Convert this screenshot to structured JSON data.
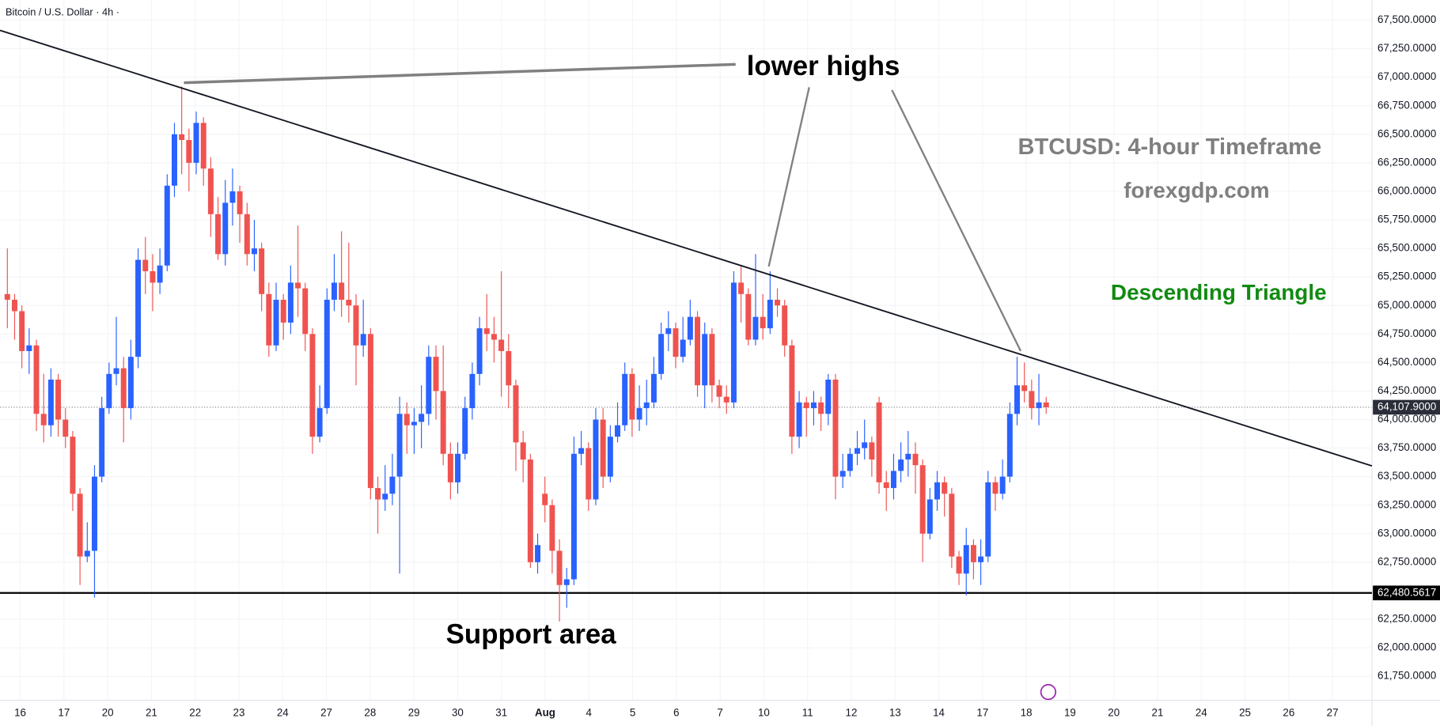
{
  "chart_data": {
    "type": "candlestick",
    "title": "Bitcoin / U.S. Dollar · 4h ·",
    "up_color": "#2962ff",
    "down_color": "#ef5350",
    "annotations": [
      "lower highs",
      "BTCUSD: 4-hour Timeframe",
      "forexgdp.com",
      "Descending Triangle",
      "Support area"
    ],
    "xticks": [
      "16",
      "17",
      "20",
      "21",
      "22",
      "23",
      "24",
      "27",
      "28",
      "29",
      "30",
      "31",
      "Aug",
      "4",
      "5",
      "6",
      "7",
      "10",
      "11",
      "12",
      "13",
      "14",
      "17",
      "18",
      "19",
      "20",
      "21",
      "24",
      "25",
      "26",
      "27"
    ],
    "ylim": [
      61540,
      67677
    ],
    "yticks": [
      {
        "value": 67500,
        "label": "67,500.0000"
      },
      {
        "value": 67250,
        "label": "67,250.0000"
      },
      {
        "value": 67000,
        "label": "67,000.0000"
      },
      {
        "value": 66750,
        "label": "66,750.0000"
      },
      {
        "value": 66500,
        "label": "66,500.0000"
      },
      {
        "value": 66250,
        "label": "66,250.0000"
      },
      {
        "value": 66000,
        "label": "66,000.0000"
      },
      {
        "value": 65750,
        "label": "65,750.0000"
      },
      {
        "value": 65500,
        "label": "65,500.0000"
      },
      {
        "value": 65250,
        "label": "65,250.0000"
      },
      {
        "value": 65000,
        "label": "65,000.0000"
      },
      {
        "value": 64750,
        "label": "64,750.0000"
      },
      {
        "value": 64500,
        "label": "64,500.0000"
      },
      {
        "value": 64250,
        "label": "64,250.0000"
      },
      {
        "value": 64000,
        "label": "64,000.0000"
      },
      {
        "value": 63750,
        "label": "63,750.0000"
      },
      {
        "value": 63500,
        "label": "63,500.0000"
      },
      {
        "value": 63250,
        "label": "63,250.0000"
      },
      {
        "value": 63000,
        "label": "63,000.0000"
      },
      {
        "value": 62750,
        "label": "62,750.0000"
      },
      {
        "value": 62250,
        "label": "62,250.0000"
      },
      {
        "value": 62000,
        "label": "62,000.0000"
      },
      {
        "value": 61750,
        "label": "61,750.0000"
      }
    ],
    "last_price": {
      "value": 64107.9,
      "label": "64,107.9000"
    },
    "support_line": {
      "value": 62480.5617,
      "label": "62,480.5617"
    },
    "open": [
      65100,
      65050,
      64950,
      64600,
      64650,
      64050,
      63950,
      64350,
      64000,
      63850,
      63350,
      62800,
      62850,
      63500,
      64100,
      64400,
      64450,
      64100,
      64550,
      65400,
      65300,
      65200,
      65350,
      66050,
      66500,
      66450,
      66250,
      66600,
      66200,
      65800,
      65450,
      65900,
      66000,
      65800,
      65450,
      65500,
      65100,
      64650,
      65050,
      64850,
      65200,
      65150,
      64750,
      63850,
      64100,
      65050,
      65200,
      65050,
      65000,
      64650,
      64750,
      63400,
      63300,
      63350,
      63500,
      64050,
      63950,
      63980,
      64050,
      64550,
      64250,
      63700,
      63450,
      63700,
      64100,
      64400,
      64800,
      64750,
      64700,
      64600,
      64300,
      63800,
      63650,
      62750,
      63350,
      63250,
      62850,
      62550,
      62600,
      63700,
      63750,
      63300,
      64000,
      63500,
      63850,
      63950,
      64400,
      64000,
      64100,
      64150,
      64400,
      64750,
      64800,
      64550,
      64700,
      64900,
      64300,
      64750,
      64300,
      64200,
      64150,
      65200,
      65100,
      64700,
      64900,
      64800,
      65050,
      65000,
      64650,
      63850,
      64150,
      64100,
      64150,
      64050,
      64350,
      63500,
      63550,
      63700,
      63750,
      63800,
      64150,
      63450,
      63400,
      63550,
      63650,
      63700,
      63600,
      63000,
      63300,
      63450,
      63350,
      62800,
      62650,
      62900,
      62750,
      62800,
      63450,
      63350,
      63500,
      64050,
      64300,
      64250,
      64100,
      64150
    ],
    "high": [
      65500,
      65100,
      65000,
      64800,
      64700,
      64400,
      64450,
      64400,
      64100,
      63900,
      63400,
      63100,
      63600,
      64200,
      64500,
      64900,
      64550,
      64700,
      65500,
      65600,
      65450,
      65500,
      66150,
      66600,
      66920,
      66550,
      66700,
      66650,
      66300,
      65950,
      66100,
      66200,
      66050,
      65900,
      65750,
      65550,
      65200,
      65200,
      65100,
      65350,
      65700,
      65200,
      64800,
      64300,
      65150,
      65450,
      65650,
      65550,
      65100,
      65050,
      64800,
      63500,
      63600,
      63700,
      64200,
      64150,
      64100,
      64300,
      64650,
      64650,
      64650,
      63800,
      63800,
      64200,
      64500,
      64900,
      65100,
      64900,
      65300,
      64750,
      64350,
      63900,
      63700,
      63000,
      63500,
      63300,
      62950,
      62700,
      63850,
      63900,
      63800,
      64100,
      64100,
      63950,
      64150,
      64500,
      64450,
      64300,
      64350,
      64550,
      64850,
      64950,
      64850,
      64900,
      65050,
      64950,
      64850,
      64800,
      64350,
      64300,
      65300,
      65350,
      65150,
      65450,
      65100,
      65300,
      65150,
      65050,
      64700,
      64250,
      64200,
      64250,
      64200,
      64400,
      64400,
      63700,
      63750,
      63900,
      64000,
      63850,
      64200,
      63550,
      63700,
      63800,
      63900,
      63800,
      63650,
      63400,
      63550,
      63500,
      63400,
      62850,
      63050,
      62950,
      62950,
      63550,
      63500,
      63650,
      64150,
      64550,
      64500,
      64350,
      64400,
      64200
    ],
    "low": [
      64800,
      64700,
      64450,
      64400,
      63900,
      63800,
      63850,
      63850,
      63750,
      63200,
      62550,
      62750,
      62440,
      63450,
      64050,
      64300,
      63800,
      64000,
      64450,
      65100,
      64950,
      65100,
      65300,
      65950,
      66150,
      66000,
      66150,
      66050,
      65600,
      65400,
      65350,
      65700,
      65550,
      65350,
      65300,
      64950,
      64550,
      64600,
      64700,
      64750,
      64900,
      64600,
      63700,
      63800,
      64050,
      64950,
      64900,
      64850,
      64300,
      64550,
      63300,
      63000,
      63200,
      63250,
      62650,
      63700,
      63700,
      63750,
      63950,
      64000,
      63600,
      63300,
      63350,
      63650,
      64000,
      64300,
      64600,
      64500,
      64200,
      64100,
      63550,
      63450,
      62700,
      62650,
      63100,
      62650,
      62230,
      62350,
      62550,
      63600,
      63200,
      63250,
      63400,
      63450,
      63800,
      63900,
      63850,
      63900,
      63950,
      64100,
      64350,
      64600,
      64450,
      64500,
      64650,
      64200,
      64100,
      64150,
      64100,
      64050,
      64100,
      64850,
      64650,
      64650,
      64700,
      64750,
      64900,
      64550,
      63700,
      63750,
      63850,
      63950,
      63900,
      63950,
      63300,
      63400,
      63500,
      63600,
      63650,
      63500,
      63350,
      63200,
      63300,
      63450,
      63500,
      63350,
      62750,
      62950,
      63200,
      63150,
      62700,
      62550,
      62460,
      62600,
      62550,
      62750,
      63200,
      63300,
      63450,
      63950,
      64150,
      64000,
      63950,
      64050
    ],
    "close": [
      65050,
      64950,
      64600,
      64650,
      64050,
      63950,
      64350,
      64000,
      63850,
      63350,
      62800,
      62850,
      63500,
      64100,
      64400,
      64450,
      64100,
      64550,
      65400,
      65300,
      65200,
      65350,
      66050,
      66500,
      66450,
      66250,
      66600,
      66200,
      65800,
      65450,
      65900,
      66000,
      65800,
      65450,
      65500,
      65100,
      64650,
      65050,
      64850,
      65200,
      65150,
      64750,
      63850,
      64100,
      65050,
      65200,
      65050,
      65000,
      64650,
      64750,
      63400,
      63300,
      63350,
      63500,
      64050,
      63950,
      63980,
      64050,
      64550,
      64250,
      63700,
      63450,
      63700,
      64100,
      64400,
      64800,
      64750,
      64700,
      64600,
      64300,
      63800,
      63650,
      62750,
      62900,
      63250,
      62850,
      62550,
      62600,
      63700,
      63750,
      63300,
      64000,
      63500,
      63850,
      63950,
      64400,
      64000,
      64100,
      64150,
      64400,
      64750,
      64800,
      64550,
      64700,
      64900,
      64300,
      64750,
      64300,
      64200,
      64150,
      65200,
      65100,
      64700,
      64900,
      64800,
      65050,
      65000,
      64650,
      63850,
      64150,
      64100,
      64150,
      64050,
      64350,
      63500,
      63550,
      63700,
      63750,
      63800,
      63650,
      63450,
      63400,
      63550,
      63650,
      63700,
      63600,
      63000,
      63300,
      63450,
      63350,
      62800,
      62650,
      62900,
      62750,
      62800,
      63450,
      63350,
      63500,
      64050,
      64300,
      64250,
      64100,
      64150,
      64107.9
    ]
  }
}
